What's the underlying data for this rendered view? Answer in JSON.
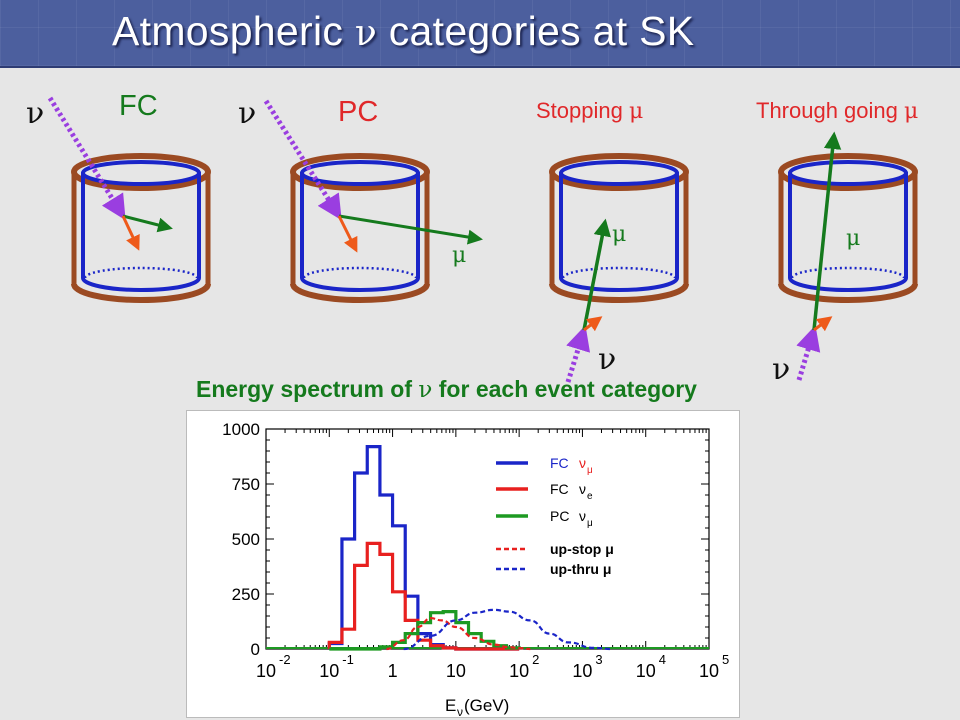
{
  "slide": {
    "title_prefix": "Atmospheric ",
    "title_greek": "ν",
    "title_suffix": " categories at SK",
    "nu_symbol": "ν",
    "mu_symbol": "μ",
    "categories": [
      {
        "label": "FC"
      },
      {
        "label": "PC"
      },
      {
        "label": "Stopping "
      },
      {
        "label": "Through going "
      }
    ],
    "subheading_prefix": "Energy spectrum of ",
    "subheading_greek": "ν",
    "subheading_suffix": " for each event category",
    "colors": {
      "header": "#4c5f9e",
      "tank_outer": "#9b4a22",
      "tank_inner": "#1a25c8",
      "neutrino": "#9a3ee0",
      "muon": "#157a1d",
      "electron": "#ee5a1a"
    },
    "icons": [
      "nu-arrow-icon",
      "muon-arrow-icon",
      "electron-arrow-icon",
      "tank-icon"
    ]
  },
  "chart_data": {
    "type": "line",
    "x_scale": "log",
    "xlim": [
      0.01,
      100000
    ],
    "ylim": [
      0,
      1000
    ],
    "xticks": [
      {
        "base": "10",
        "exp": "-2"
      },
      {
        "base": "10",
        "exp": "-1"
      },
      {
        "base": "1",
        "exp": ""
      },
      {
        "base": "10",
        "exp": ""
      },
      {
        "base": "10",
        "exp": "2"
      },
      {
        "base": "10",
        "exp": "3"
      },
      {
        "base": "10",
        "exp": "4"
      },
      {
        "base": "10",
        "exp": "5"
      }
    ],
    "yticks": [
      "0",
      "250",
      "500",
      "750",
      "1000"
    ],
    "xlabel_main": "E",
    "xlabel_sub": "ν",
    "xlabel_rest": " (GeV)",
    "grid": false,
    "legend_position": "top-right",
    "bin_edges": [
      0.1,
      0.1585,
      0.2512,
      0.3981,
      0.631,
      1.0,
      1.585,
      2.512,
      3.981,
      6.31,
      10.0,
      15.85,
      25.12,
      39.81,
      63.1,
      100.0
    ],
    "series": [
      {
        "name": "FC",
        "name_sub": "νμ",
        "style": "step",
        "color": "#1a25c8",
        "values": [
          25,
          500,
          800,
          920,
          700,
          560,
          240,
          70,
          20,
          5,
          0,
          0,
          0,
          0,
          0
        ]
      },
      {
        "name": "FC",
        "name_sub": "νe",
        "style": "step",
        "color": "#e8201f",
        "values": [
          30,
          90,
          380,
          480,
          430,
          260,
          130,
          40,
          15,
          5,
          0,
          0,
          0,
          0,
          0
        ]
      },
      {
        "name": "PC",
        "name_sub": "νμ",
        "style": "step",
        "color": "#1d9a22",
        "values": [
          0,
          0,
          0,
          0,
          10,
          30,
          70,
          120,
          165,
          170,
          120,
          70,
          35,
          15,
          5
        ]
      },
      {
        "name": "up-stop μ",
        "style": "dashed",
        "color": "#e8201f",
        "x": [
          0.8,
          1.5,
          2.5,
          4.0,
          6.0,
          10,
          20,
          40,
          70,
          100,
          150
        ],
        "values": [
          0,
          40,
          100,
          140,
          130,
          100,
          50,
          20,
          8,
          4,
          0
        ]
      },
      {
        "name": "up-thru μ",
        "style": "dashed",
        "color": "#1a25c8",
        "x": [
          1.5,
          4,
          10,
          20,
          40,
          70,
          150,
          300,
          600,
          1500,
          3000
        ],
        "values": [
          0,
          60,
          130,
          165,
          178,
          170,
          130,
          70,
          30,
          5,
          0
        ]
      }
    ]
  }
}
